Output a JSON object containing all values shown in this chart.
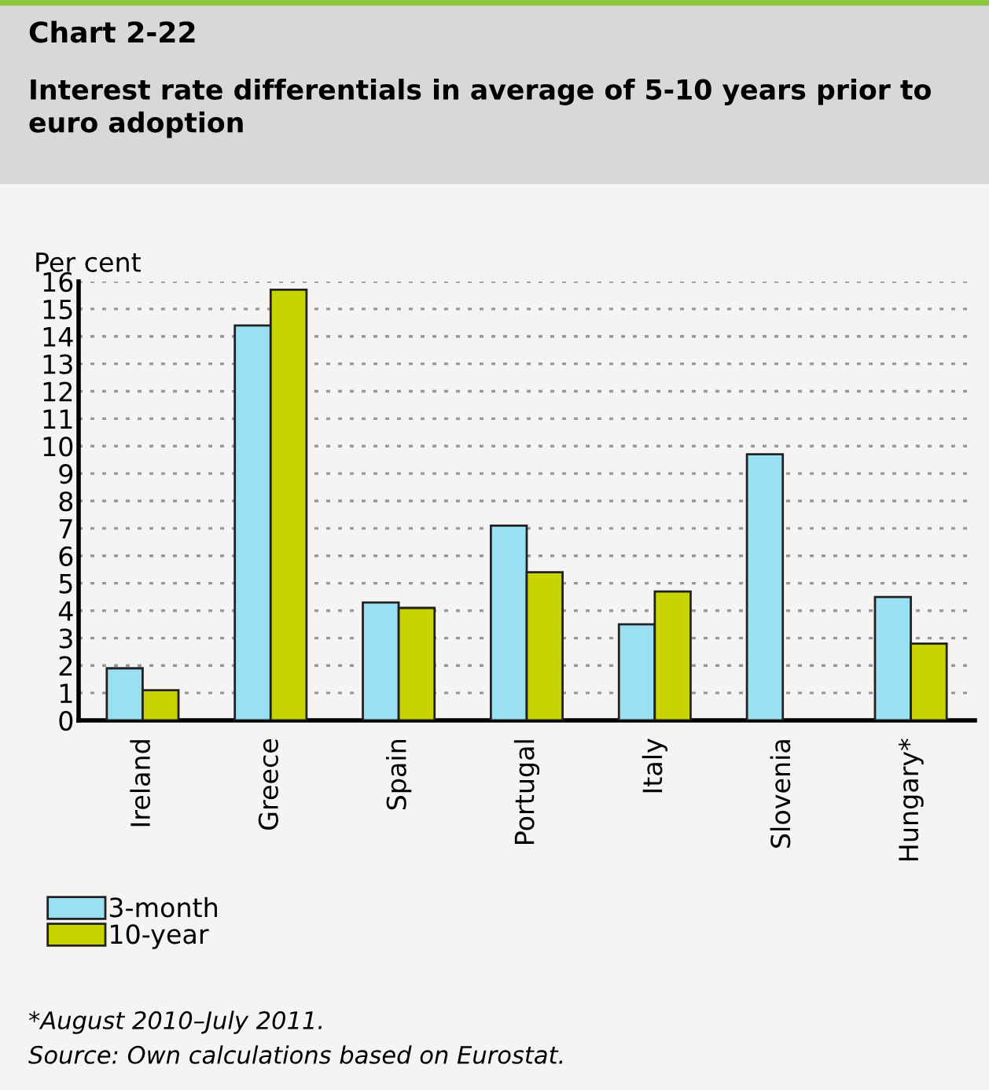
{
  "chart_data": {
    "type": "bar",
    "title": "Chart 2-22",
    "subtitle": "Interest rate differentials in average of 5-10 years prior to euro adoption",
    "ylabel": "Per cent",
    "categories": [
      "Ireland",
      "Greece",
      "Spain",
      "Portugal",
      "Italy",
      "Slovenia",
      "Hungary*"
    ],
    "series": [
      {
        "name": "3-month",
        "color": "#99e0f2",
        "values": [
          1.9,
          14.4,
          4.3,
          7.1,
          3.5,
          9.7,
          4.5
        ]
      },
      {
        "name": "10-year",
        "color": "#c8d400",
        "values": [
          1.1,
          15.7,
          4.1,
          5.4,
          4.7,
          null,
          2.8
        ]
      }
    ],
    "ylim": [
      0,
      16
    ],
    "yticks": [
      0,
      1,
      2,
      3,
      4,
      5,
      6,
      7,
      8,
      9,
      10,
      11,
      12,
      13,
      14,
      15,
      16
    ],
    "grid": "y",
    "legend": "bottom",
    "annotations": [
      "*August 2010–July 2011.",
      "Source: Own calculations based on Eurostat."
    ]
  }
}
